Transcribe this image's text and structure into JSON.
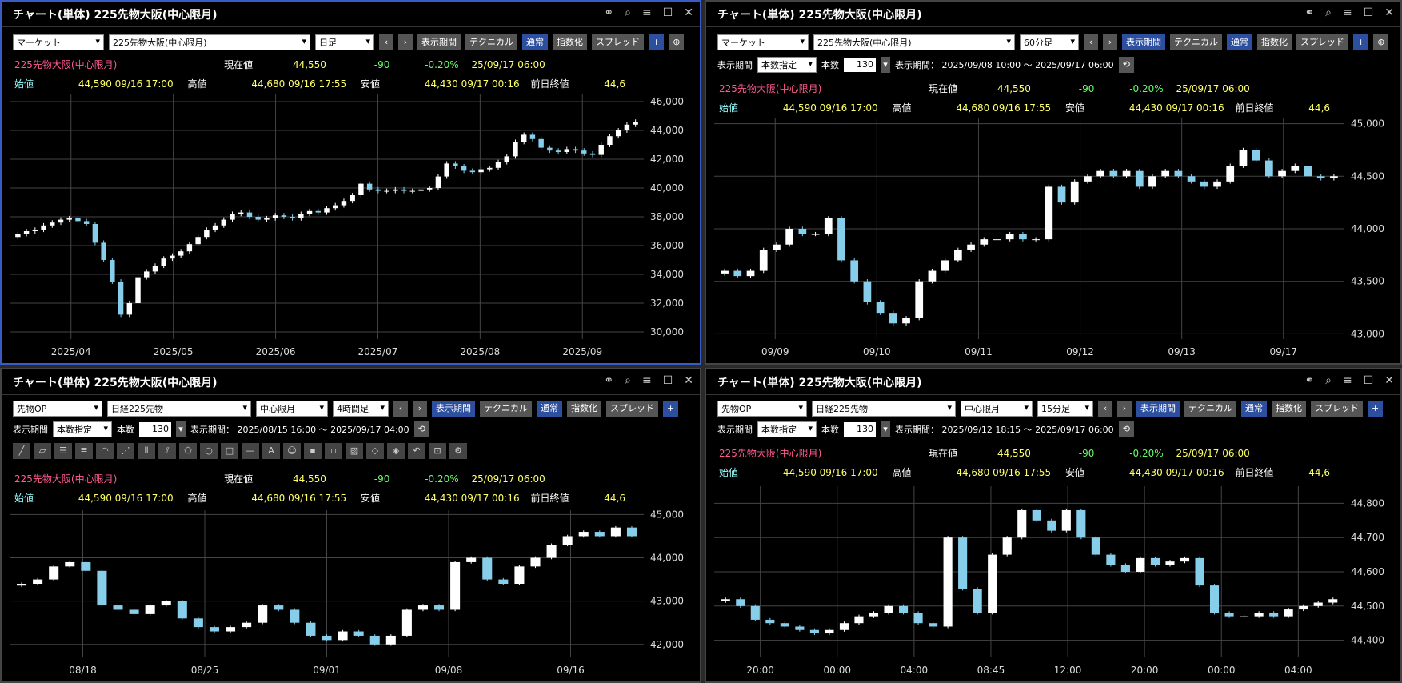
{
  "common": {
    "title": "チャート(単体) 225先物大阪(中心限月)",
    "instrument": "225先物大阪(中心限月)",
    "current_label": "現在値",
    "current": "44,550",
    "change": "-90",
    "change_pct": "-0.20%",
    "datetime": "25/09/17  06:00",
    "open_label": "始値",
    "open": "44,590",
    "open_time": "09/16  17:00",
    "high_label": "高値",
    "high": "44,680",
    "high_time": "09/16  17:55",
    "low_label": "安値",
    "low": "44,430",
    "low_time": "09/17  00:16",
    "prev_label": "前日終値",
    "prev": "44,6",
    "btn_period": "表示期間",
    "btn_tech": "テクニカル",
    "btn_normal": "通常",
    "btn_index": "指数化",
    "btn_spread": "スプレッド",
    "period_label": "表示期間",
    "period_mode": "本数指定",
    "count_label": "本数",
    "count": "130"
  },
  "panels": [
    {
      "sel1": "マーケット",
      "sel2": "225先物大阪(中心限月)",
      "sel3": "日足"
    },
    {
      "sel1": "マーケット",
      "sel2": "225先物大阪(中心限月)",
      "sel3": "60分足",
      "range": "表示期間：  2025/09/08 10:00 ～ 2025/09/17 06:00"
    },
    {
      "sel1": "先物OP",
      "sel2": "日経225先物",
      "sel3": "中心限月",
      "sel4": "4時間足",
      "range": "表示期間：  2025/08/15 16:00 ～ 2025/09/17 04:00"
    },
    {
      "sel1": "先物OP",
      "sel2": "日経225先物",
      "sel3": "中心限月",
      "sel4": "15分足",
      "range": "表示期間：  2025/09/12 18:15 ～ 2025/09/17 06:00"
    }
  ],
  "chart_data": [
    {
      "type": "candlestick",
      "ylim": [
        29500,
        46500
      ],
      "yticks": [
        "30,000",
        "32,000",
        "34,000",
        "36,000",
        "38,000",
        "40,000",
        "42,000",
        "44,000",
        "46,000"
      ],
      "xticks": [
        "2025/04",
        "2025/05",
        "2025/06",
        "2025/07",
        "2025/08",
        "2025/09"
      ],
      "closes": [
        36800,
        37000,
        37100,
        37400,
        37600,
        37800,
        37900,
        37700,
        37500,
        36200,
        35000,
        33500,
        31200,
        32000,
        33800,
        34200,
        34600,
        35100,
        35300,
        35600,
        36100,
        36600,
        37100,
        37400,
        37800,
        38200,
        38300,
        38000,
        37800,
        37900,
        38100,
        38000,
        37900,
        38200,
        38400,
        38300,
        38600,
        38800,
        39100,
        39500,
        40300,
        39900,
        39800,
        39800,
        39900,
        39800,
        39800,
        39900,
        40000,
        40800,
        41700,
        41500,
        41200,
        41100,
        41300,
        41400,
        41800,
        42200,
        43200,
        43700,
        43400,
        42800,
        42600,
        42500,
        42700,
        42600,
        42400,
        42300,
        43000,
        43600,
        44000,
        44400,
        44600
      ]
    },
    {
      "type": "candlestick",
      "ylim": [
        42950,
        45050
      ],
      "yticks": [
        "43,000",
        "43,500",
        "44,000",
        "44,500",
        "45,000"
      ],
      "xticks": [
        "09/09",
        "09/10",
        "09/11",
        "09/12",
        "09/13",
        "09/17"
      ],
      "closes": [
        43600,
        43550,
        43600,
        43800,
        43850,
        44000,
        43950,
        43950,
        44100,
        43700,
        43500,
        43300,
        43200,
        43100,
        43150,
        43500,
        43600,
        43700,
        43800,
        43850,
        43900,
        43900,
        43950,
        43900,
        43900,
        44400,
        44250,
        44450,
        44500,
        44550,
        44500,
        44550,
        44400,
        44500,
        44550,
        44500,
        44450,
        44400,
        44450,
        44600,
        44750,
        44650,
        44500,
        44550,
        44600,
        44500,
        44480,
        44500
      ]
    },
    {
      "type": "candlestick",
      "ylim": [
        41700,
        45100
      ],
      "yticks": [
        "42,000",
        "43,000",
        "44,000",
        "45,000"
      ],
      "xticks": [
        "08/18",
        "08/25",
        "09/01",
        "09/08",
        "09/16"
      ],
      "closes": [
        43400,
        43500,
        43800,
        43900,
        43700,
        42900,
        42800,
        42700,
        42900,
        43000,
        42600,
        42400,
        42300,
        42400,
        42500,
        42900,
        42800,
        42500,
        42200,
        42100,
        42300,
        42200,
        42000,
        42200,
        42800,
        42900,
        42800,
        43900,
        44000,
        43500,
        43400,
        43800,
        44000,
        44300,
        44500,
        44600,
        44500,
        44700,
        44500
      ]
    },
    {
      "type": "candlestick",
      "ylim": [
        44350,
        44850
      ],
      "yticks": [
        "44,400",
        "44,500",
        "44,600",
        "44,700",
        "44,800"
      ],
      "xticks": [
        "20:00",
        "00:00",
        "04:00",
        "08:45",
        "12:00",
        "20:00",
        "00:00",
        "04:00"
      ],
      "closes": [
        44520,
        44500,
        44460,
        44450,
        44440,
        44430,
        44420,
        44430,
        44450,
        44470,
        44480,
        44500,
        44480,
        44450,
        44440,
        44700,
        44550,
        44480,
        44650,
        44700,
        44780,
        44750,
        44720,
        44780,
        44700,
        44650,
        44620,
        44600,
        44640,
        44620,
        44630,
        44640,
        44560,
        44480,
        44470,
        44470,
        44480,
        44470,
        44490,
        44500,
        44510,
        44520
      ]
    }
  ]
}
